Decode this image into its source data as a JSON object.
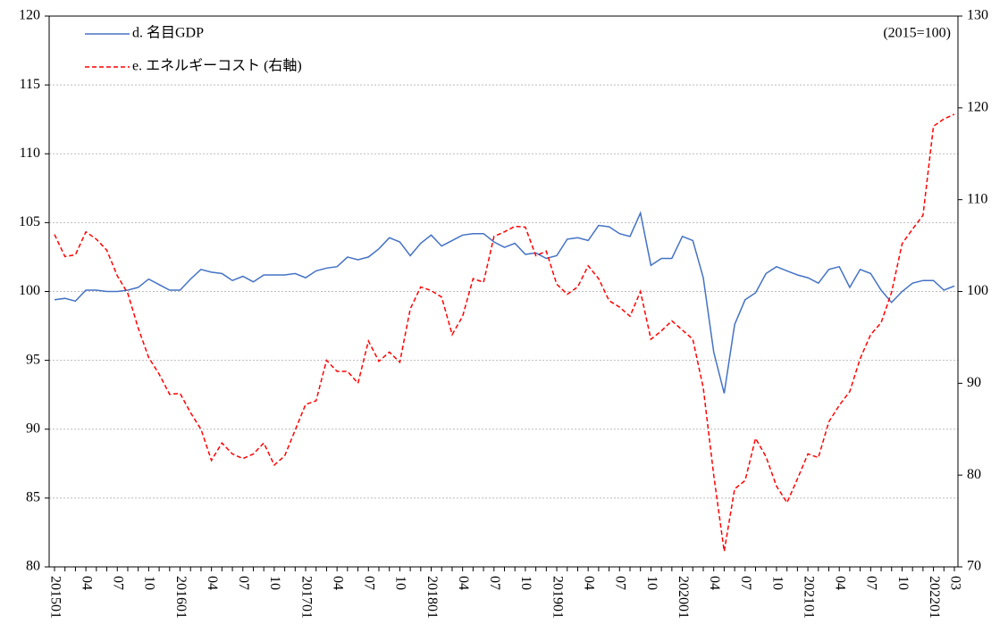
{
  "chart_data": {
    "type": "line",
    "annotation": "(2015=100)",
    "categories": [
      "201501",
      null,
      null,
      "04",
      null,
      null,
      "07",
      null,
      null,
      "10",
      null,
      null,
      "201601",
      null,
      null,
      "04",
      null,
      null,
      "07",
      null,
      null,
      "10",
      null,
      null,
      "201701",
      null,
      null,
      "04",
      null,
      null,
      "07",
      null,
      null,
      "10",
      null,
      null,
      "201801",
      null,
      null,
      "04",
      null,
      null,
      "07",
      null,
      null,
      "10",
      null,
      null,
      "201901",
      null,
      null,
      "04",
      null,
      null,
      "07",
      null,
      null,
      "10",
      null,
      null,
      "202001",
      null,
      null,
      "04",
      null,
      null,
      "07",
      null,
      null,
      "10",
      null,
      null,
      "202101",
      null,
      null,
      "04",
      null,
      null,
      "07",
      null,
      null,
      "10",
      null,
      null,
      "202201",
      null,
      "03"
    ],
    "series": [
      {
        "name": "d. 名目GDP",
        "color": "#4472c4",
        "line_style": "solid",
        "axis": "y",
        "values": [
          99.4,
          99.5,
          99.3,
          100.1,
          100.1,
          100.0,
          100.0,
          100.1,
          100.3,
          100.9,
          100.5,
          100.1,
          100.1,
          100.9,
          101.6,
          101.4,
          101.3,
          100.8,
          101.1,
          100.7,
          101.2,
          101.2,
          101.2,
          101.3,
          101.0,
          101.5,
          101.7,
          101.8,
          102.5,
          102.3,
          102.5,
          103.1,
          103.9,
          103.6,
          102.6,
          103.5,
          104.1,
          103.3,
          103.7,
          104.1,
          104.2,
          104.2,
          103.6,
          103.2,
          103.5,
          102.7,
          102.8,
          102.4,
          102.6,
          103.8,
          103.9,
          103.7,
          104.8,
          104.7,
          104.2,
          104.0,
          105.7,
          101.9,
          102.4,
          102.4,
          104.0,
          103.7,
          101.0,
          95.6,
          92.6,
          97.6,
          99.4,
          99.9,
          101.3,
          101.8,
          101.5,
          101.2,
          101.0,
          100.6,
          101.6,
          101.8,
          100.3,
          101.6,
          101.3,
          100.1,
          99.2,
          100.0,
          100.6,
          100.8,
          100.8,
          100.1,
          100.4
        ]
      },
      {
        "name": "e. エネルギーコスト (右軸)",
        "color": "#ff0000",
        "line_style": "dashed",
        "axis": "y2",
        "values": [
          106.2,
          103.8,
          104.0,
          106.5,
          105.7,
          104.5,
          101.7,
          99.8,
          96.0,
          92.8,
          91.0,
          88.8,
          88.9,
          86.8,
          85.0,
          81.6,
          83.5,
          82.3,
          81.8,
          82.3,
          83.5,
          81.1,
          82.1,
          84.9,
          87.7,
          88.1,
          92.5,
          91.3,
          91.3,
          90.0,
          94.6,
          92.4,
          93.4,
          92.3,
          98.1,
          100.5,
          100.1,
          99.4,
          95.3,
          97.3,
          101.4,
          101.0,
          106.0,
          106.5,
          107.1,
          107.0,
          103.9,
          104.4,
          100.8,
          99.7,
          100.5,
          102.8,
          101.4,
          99.0,
          98.3,
          97.3,
          100.0,
          94.8,
          95.7,
          96.8,
          95.8,
          94.8,
          89.5,
          80.0,
          71.7,
          78.5,
          79.4,
          84.0,
          82.0,
          78.8,
          77.0,
          79.6,
          82.3,
          81.9,
          85.8,
          87.6,
          89.1,
          92.7,
          95.3,
          96.6,
          99.9,
          105.2,
          106.8,
          108.3,
          118.0,
          118.8,
          119.3
        ]
      }
    ],
    "ylim": [
      80,
      120
    ],
    "yticks": [
      80,
      85,
      90,
      95,
      100,
      105,
      110,
      115,
      120
    ],
    "y2lim": [
      70,
      130
    ],
    "y2ticks": [
      70,
      80,
      90,
      100,
      110,
      120,
      130
    ],
    "grid": true,
    "legend": "top-left"
  }
}
